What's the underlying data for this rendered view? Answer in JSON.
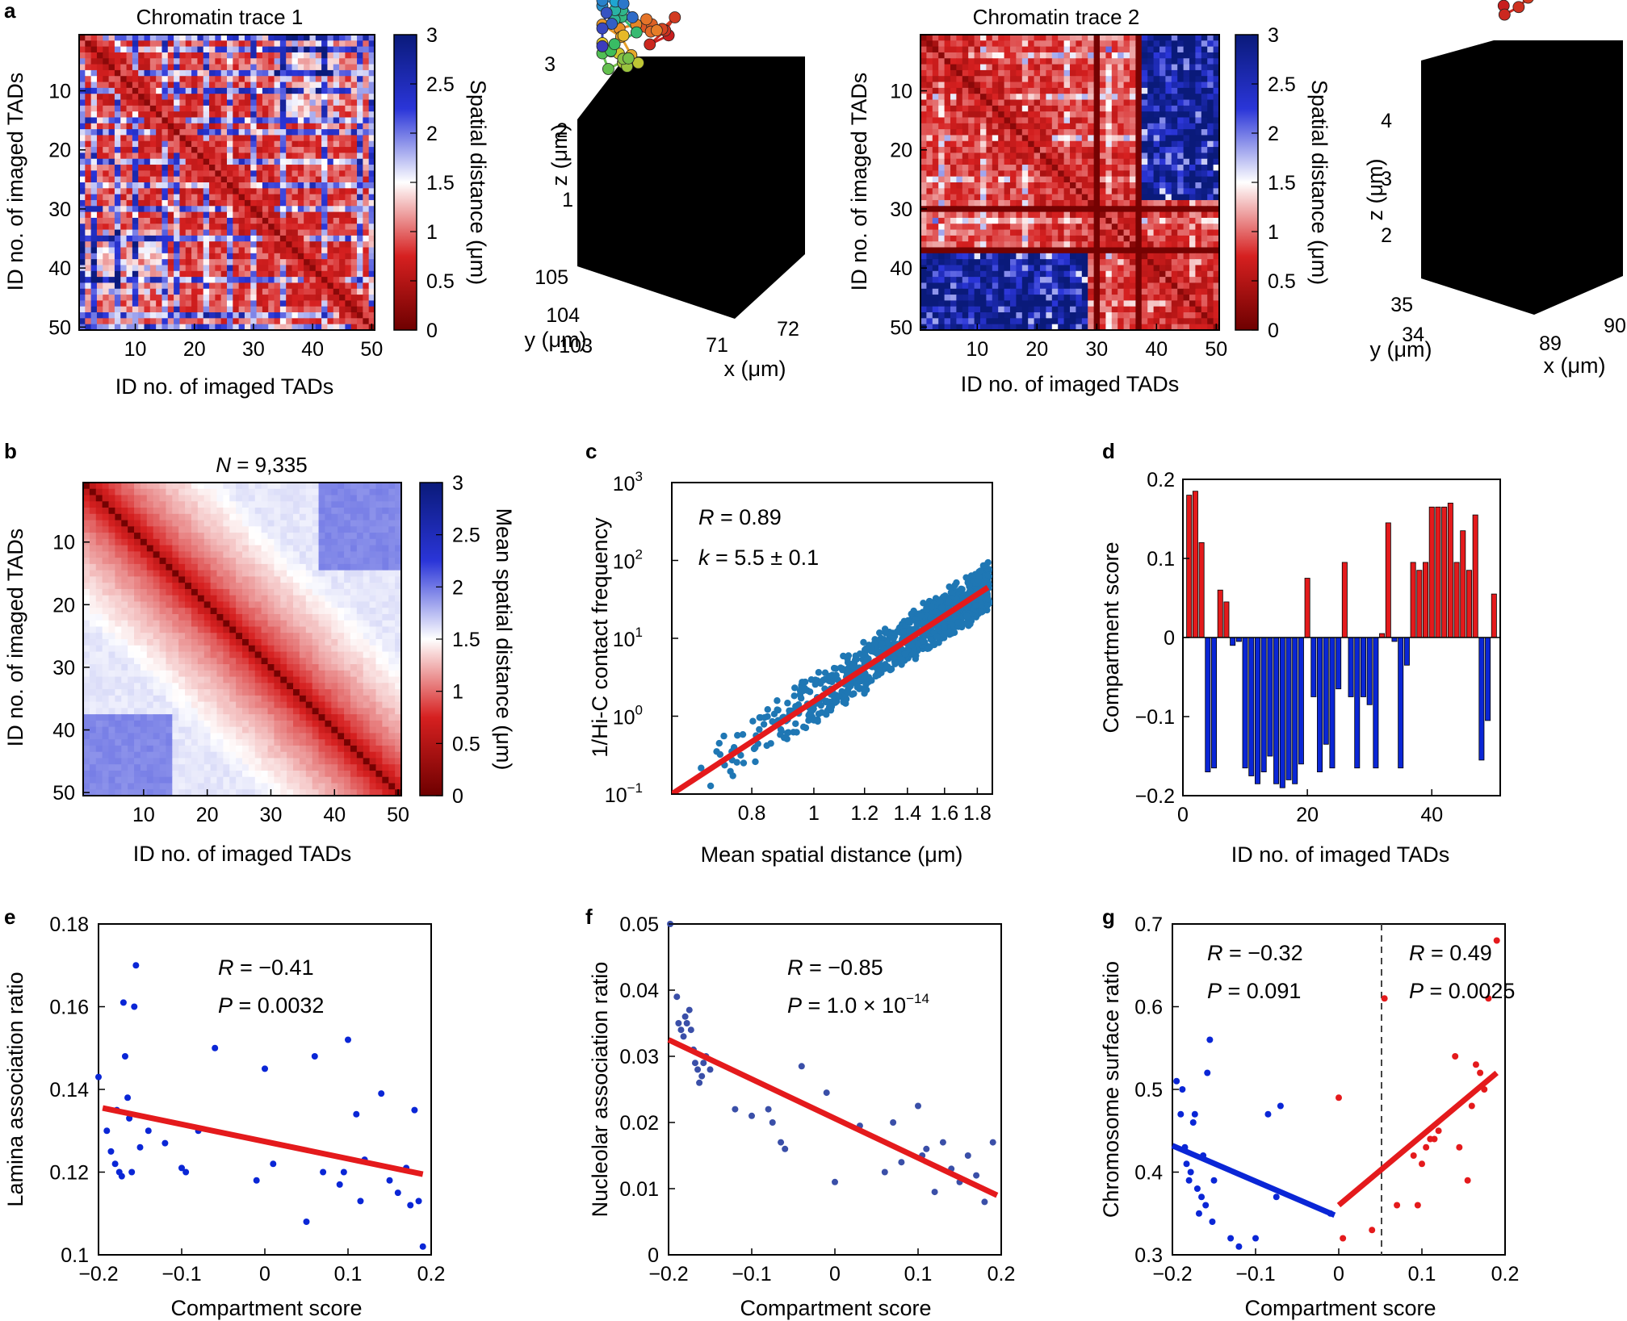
{
  "panel_labels": {
    "a": "a",
    "b": "b",
    "c": "c",
    "d": "d",
    "e": "e",
    "f": "f",
    "g": "g"
  },
  "colors": {
    "red": "#e41a1c",
    "blue": "#0a26d6",
    "dark_red": "#6e0000",
    "dark_blue": "#0a1a7a",
    "scatter_blue": "#1f77b4"
  },
  "chart_data": [
    {
      "id": "a1",
      "type": "heatmap",
      "title": "Chromatin trace 1",
      "xlabel": "ID no. of imaged TADs",
      "ylabel": "ID no. of imaged TADs",
      "x_ticks": [
        "10",
        "20",
        "30",
        "40",
        "50"
      ],
      "y_ticks": [
        "10",
        "20",
        "30",
        "40",
        "50"
      ],
      "colorbar": {
        "label": "Spatial distance (μm)",
        "ticks": [
          "0",
          "0.5",
          "1",
          "1.5",
          "2",
          "2.5",
          "3"
        ],
        "range": [
          0,
          3
        ]
      },
      "size": 50,
      "seed": 7
    },
    {
      "id": "a2",
      "type": "scatter3d",
      "xlabel": "x (μm)",
      "ylabel": "y (μm)",
      "zlabel": "z (μm)",
      "x_ticks": [
        "71",
        "72"
      ],
      "y_ticks": [
        "103",
        "104",
        "105"
      ],
      "z_ticks": [
        "1",
        "2",
        "3"
      ]
    },
    {
      "id": "a3",
      "type": "heatmap",
      "title": "Chromatin trace 2",
      "xlabel": "ID no. of imaged TADs",
      "ylabel": "ID no. of imaged TADs",
      "x_ticks": [
        "10",
        "20",
        "30",
        "40",
        "50"
      ],
      "y_ticks": [
        "10",
        "20",
        "30",
        "40",
        "50"
      ],
      "colorbar": {
        "label": "Spatial distance (μm)",
        "ticks": [
          "0",
          "0.5",
          "1",
          "1.5",
          "2",
          "2.5",
          "3"
        ],
        "range": [
          0,
          3
        ]
      },
      "size": 50,
      "seed": 19
    },
    {
      "id": "a4",
      "type": "scatter3d",
      "xlabel": "x (μm)",
      "ylabel": "y (μm)",
      "zlabel": "z (μm)",
      "x_ticks": [
        "89",
        "90"
      ],
      "y_ticks": [
        "34",
        "35"
      ],
      "z_ticks": [
        "2",
        "3",
        "4"
      ]
    },
    {
      "id": "b",
      "type": "heatmap",
      "title_italic": "N",
      "title_rest": " = 9,335",
      "xlabel": "ID no. of imaged TADs",
      "ylabel": "ID no. of imaged TADs",
      "x_ticks": [
        "10",
        "20",
        "30",
        "40",
        "50"
      ],
      "y_ticks": [
        "10",
        "20",
        "30",
        "40",
        "50"
      ],
      "colorbar": {
        "label": "Mean spatial distance (μm)",
        "ticks": [
          "0",
          "0.5",
          "1",
          "1.5",
          "2",
          "2.5",
          "3"
        ],
        "range": [
          0,
          3
        ]
      },
      "size": 50
    },
    {
      "id": "c",
      "type": "scatter",
      "xlabel": "Mean spatial distance (μm)",
      "ylabel": "1/Hi-C contact frequency",
      "x_scale": "log",
      "y_scale": "log",
      "xlim": [
        0.6,
        1.9
      ],
      "ylim": [
        0.1,
        1000
      ],
      "x_ticks": [
        "0.8",
        "1",
        "1.2",
        "1.4",
        "1.6",
        "1.8"
      ],
      "y_tick_base": [
        "10",
        "10",
        "10",
        "10",
        "10"
      ],
      "y_tick_exp": [
        "−1",
        "0",
        "1",
        "2",
        "3"
      ],
      "annotations": {
        "r_italic": "R",
        "r_rest": " = 0.89",
        "k_italic": "k",
        "k_rest": " = 5.5 ± 0.1"
      },
      "fit": {
        "x": [
          0.6,
          1.87
        ],
        "y": [
          0.1,
          45
        ]
      }
    },
    {
      "id": "d",
      "type": "bar",
      "xlabel": "ID no. of imaged TADs",
      "ylabel": "Compartment score",
      "xlim": [
        0,
        51
      ],
      "ylim": [
        -0.2,
        0.2
      ],
      "x_ticks": [
        "0",
        "20",
        "40"
      ],
      "y_ticks": [
        "−0.2",
        "−0.1",
        "0",
        "0.1",
        "0.2"
      ],
      "values": [
        0.18,
        0.185,
        0.12,
        -0.17,
        -0.165,
        0.06,
        0.045,
        -0.01,
        -0.005,
        -0.165,
        -0.175,
        -0.185,
        -0.17,
        -0.15,
        -0.185,
        -0.19,
        -0.18,
        -0.185,
        -0.16,
        0.075,
        -0.075,
        -0.17,
        -0.135,
        -0.165,
        -0.065,
        0.095,
        -0.075,
        -0.165,
        -0.075,
        -0.085,
        -0.165,
        0.005,
        0.145,
        -0.005,
        -0.165,
        -0.035,
        0.095,
        0.085,
        0.095,
        0.165,
        0.165,
        0.165,
        0.17,
        0.095,
        0.135,
        0.085,
        0.155,
        -0.155,
        -0.105,
        0.055
      ]
    },
    {
      "id": "e",
      "type": "scatter",
      "xlabel": "Compartment score",
      "ylabel": "Lamina association ratio",
      "xlim": [
        -0.2,
        0.2
      ],
      "ylim": [
        0.1,
        0.18
      ],
      "x_ticks": [
        "−0.2",
        "−0.1",
        "0",
        "0.1",
        "0.2"
      ],
      "y_ticks": [
        "0.1",
        "0.12",
        "0.14",
        "0.16",
        "0.18"
      ],
      "annotations": {
        "r_italic": "R",
        "r_rest": " = −0.41",
        "p_italic": "P",
        "p_rest": " = 0.0032"
      },
      "fit": {
        "x": [
          -0.195,
          0.19
        ],
        "y": [
          0.1355,
          0.1195
        ]
      },
      "points": [
        [
          -0.2,
          0.143
        ],
        [
          -0.19,
          0.13
        ],
        [
          -0.185,
          0.125
        ],
        [
          -0.18,
          0.122
        ],
        [
          -0.178,
          0.135
        ],
        [
          -0.175,
          0.12
        ],
        [
          -0.172,
          0.119
        ],
        [
          -0.17,
          0.161
        ],
        [
          -0.168,
          0.148
        ],
        [
          -0.165,
          0.138
        ],
        [
          -0.163,
          0.133
        ],
        [
          -0.16,
          0.12
        ],
        [
          -0.157,
          0.16
        ],
        [
          -0.155,
          0.17
        ],
        [
          -0.15,
          0.126
        ],
        [
          -0.14,
          0.13
        ],
        [
          -0.12,
          0.127
        ],
        [
          -0.1,
          0.121
        ],
        [
          -0.095,
          0.12
        ],
        [
          -0.08,
          0.13
        ],
        [
          -0.06,
          0.15
        ],
        [
          -0.01,
          0.118
        ],
        [
          0.0,
          0.145
        ],
        [
          0.01,
          0.122
        ],
        [
          0.05,
          0.108
        ],
        [
          0.06,
          0.148
        ],
        [
          0.07,
          0.12
        ],
        [
          0.09,
          0.117
        ],
        [
          0.095,
          0.12
        ],
        [
          0.1,
          0.152
        ],
        [
          0.11,
          0.134
        ],
        [
          0.115,
          0.113
        ],
        [
          0.12,
          0.123
        ],
        [
          0.14,
          0.139
        ],
        [
          0.15,
          0.118
        ],
        [
          0.16,
          0.115
        ],
        [
          0.17,
          0.121
        ],
        [
          0.175,
          0.112
        ],
        [
          0.18,
          0.135
        ],
        [
          0.185,
          0.113
        ],
        [
          0.19,
          0.102
        ]
      ]
    },
    {
      "id": "f",
      "type": "scatter",
      "xlabel": "Compartment score",
      "ylabel": "Nucleolar association ratio",
      "xlim": [
        -0.2,
        0.2
      ],
      "ylim": [
        0,
        0.05
      ],
      "x_ticks": [
        "−0.2",
        "−0.1",
        "0",
        "0.1",
        "0.2"
      ],
      "y_ticks": [
        "0",
        "0.01",
        "0.02",
        "0.03",
        "0.04",
        "0.05"
      ],
      "annotations": {
        "r_italic": "R",
        "r_rest": " = −0.85",
        "p_italic": "P",
        "p_rest": " = 1.0 × 10",
        "p_exp": "−14"
      },
      "fit": {
        "x": [
          -0.2,
          0.195
        ],
        "y": [
          0.0325,
          0.009
        ]
      },
      "points": [
        [
          -0.198,
          0.05
        ],
        [
          -0.19,
          0.039
        ],
        [
          -0.188,
          0.035
        ],
        [
          -0.185,
          0.034
        ],
        [
          -0.182,
          0.033
        ],
        [
          -0.18,
          0.036
        ],
        [
          -0.178,
          0.035
        ],
        [
          -0.175,
          0.037
        ],
        [
          -0.173,
          0.034
        ],
        [
          -0.17,
          0.031
        ],
        [
          -0.168,
          0.029
        ],
        [
          -0.165,
          0.028
        ],
        [
          -0.163,
          0.026
        ],
        [
          -0.16,
          0.027
        ],
        [
          -0.158,
          0.029
        ],
        [
          -0.155,
          0.03
        ],
        [
          -0.15,
          0.028
        ],
        [
          -0.12,
          0.022
        ],
        [
          -0.1,
          0.021
        ],
        [
          -0.08,
          0.022
        ],
        [
          -0.075,
          0.02
        ],
        [
          -0.065,
          0.017
        ],
        [
          -0.06,
          0.016
        ],
        [
          -0.04,
          0.0285
        ],
        [
          -0.01,
          0.0245
        ],
        [
          0.0,
          0.011
        ],
        [
          0.03,
          0.0195
        ],
        [
          0.06,
          0.0125
        ],
        [
          0.07,
          0.02
        ],
        [
          0.08,
          0.014
        ],
        [
          0.1,
          0.0225
        ],
        [
          0.105,
          0.015
        ],
        [
          0.11,
          0.016
        ],
        [
          0.12,
          0.0095
        ],
        [
          0.13,
          0.017
        ],
        [
          0.14,
          0.013
        ],
        [
          0.15,
          0.011
        ],
        [
          0.16,
          0.015
        ],
        [
          0.17,
          0.012
        ],
        [
          0.18,
          0.008
        ],
        [
          0.19,
          0.017
        ]
      ]
    },
    {
      "id": "g",
      "type": "scatter",
      "xlabel": "Compartment score",
      "ylabel": "Chromosome surface ratio",
      "xlim": [
        -0.2,
        0.2
      ],
      "ylim": [
        0.3,
        0.7
      ],
      "x_ticks": [
        "−0.2",
        "−0.1",
        "0",
        "0.1",
        "0.2"
      ],
      "y_ticks": [
        "0.3",
        "0.4",
        "0.5",
        "0.6",
        "0.7"
      ],
      "annotations": {
        "left_r_italic": "R",
        "left_r_rest": " = −0.32",
        "left_p_italic": "P",
        "left_p_rest": " = 0.091",
        "right_r_italic": "R",
        "right_r_rest": " = 0.49",
        "right_p_italic": "P",
        "right_p_rest": " = 0.0025"
      },
      "fit_left": {
        "x": [
          -0.2,
          -0.005
        ],
        "y": [
          0.432,
          0.348
        ]
      },
      "fit_right": {
        "x": [
          0.0,
          0.19
        ],
        "y": [
          0.36,
          0.52
        ]
      },
      "points_left": [
        [
          -0.195,
          0.51
        ],
        [
          -0.19,
          0.47
        ],
        [
          -0.188,
          0.5
        ],
        [
          -0.185,
          0.43
        ],
        [
          -0.183,
          0.41
        ],
        [
          -0.18,
          0.39
        ],
        [
          -0.178,
          0.4
        ],
        [
          -0.175,
          0.46
        ],
        [
          -0.173,
          0.47
        ],
        [
          -0.17,
          0.38
        ],
        [
          -0.168,
          0.35
        ],
        [
          -0.165,
          0.37
        ],
        [
          -0.163,
          0.42
        ],
        [
          -0.16,
          0.36
        ],
        [
          -0.158,
          0.52
        ],
        [
          -0.155,
          0.56
        ],
        [
          -0.152,
          0.34
        ],
        [
          -0.15,
          0.39
        ],
        [
          -0.13,
          0.32
        ],
        [
          -0.12,
          0.31
        ],
        [
          -0.1,
          0.32
        ],
        [
          -0.085,
          0.47
        ],
        [
          -0.075,
          0.37
        ],
        [
          -0.07,
          0.48
        ],
        [
          -0.01,
          0.35
        ]
      ],
      "points_right": [
        [
          0.0,
          0.49
        ],
        [
          0.005,
          0.32
        ],
        [
          0.04,
          0.33
        ],
        [
          0.055,
          0.61
        ],
        [
          0.07,
          0.36
        ],
        [
          0.09,
          0.42
        ],
        [
          0.095,
          0.36
        ],
        [
          0.1,
          0.41
        ],
        [
          0.105,
          0.43
        ],
        [
          0.11,
          0.44
        ],
        [
          0.115,
          0.44
        ],
        [
          0.12,
          0.45
        ],
        [
          0.14,
          0.54
        ],
        [
          0.145,
          0.43
        ],
        [
          0.155,
          0.39
        ],
        [
          0.16,
          0.48
        ],
        [
          0.165,
          0.53
        ],
        [
          0.17,
          0.52
        ],
        [
          0.175,
          0.5
        ],
        [
          0.18,
          0.61
        ],
        [
          0.19,
          0.68
        ]
      ]
    }
  ]
}
